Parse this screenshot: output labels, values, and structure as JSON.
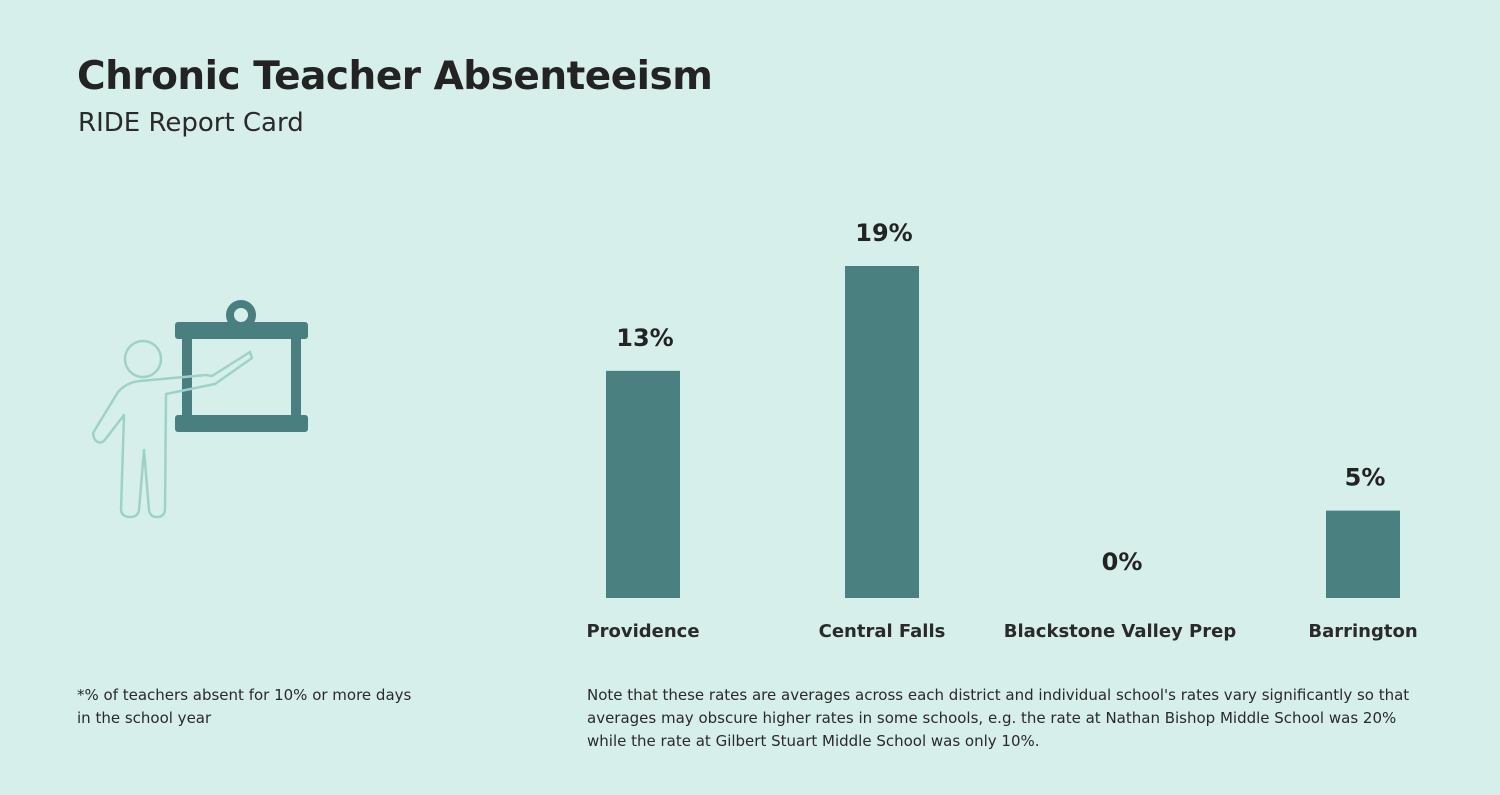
{
  "header": {
    "title": "Chronic Teacher Absenteeism",
    "subtitle": "RIDE Report Card"
  },
  "colors": {
    "background": "#d6efea",
    "bar": "#4a8080",
    "icon_board": "#4a7f80",
    "icon_person": "#9fd2c7"
  },
  "icon": {
    "name": "teacher-presenting-icon"
  },
  "chart_data": {
    "type": "bar",
    "categories": [
      "Providence",
      "Central Falls",
      "Blackstone Valley Prep",
      "Barrington"
    ],
    "values": [
      13,
      19,
      0,
      5
    ],
    "value_labels": [
      "13%",
      "19%",
      "0%",
      "5%"
    ],
    "title": "",
    "xlabel": "",
    "ylabel": "",
    "ylim": [
      0,
      19
    ],
    "grid": false,
    "legend": "none"
  },
  "footnote": "*% of teachers absent for 10% or more days in the school year",
  "note": "Note that these rates are averages across each district and individual school's rates vary significantly so that averages may obscure higher rates in some schools, e.g. the rate at Nathan Bishop Middle School was 20% while the rate at Gilbert Stuart Middle School was only 10%."
}
